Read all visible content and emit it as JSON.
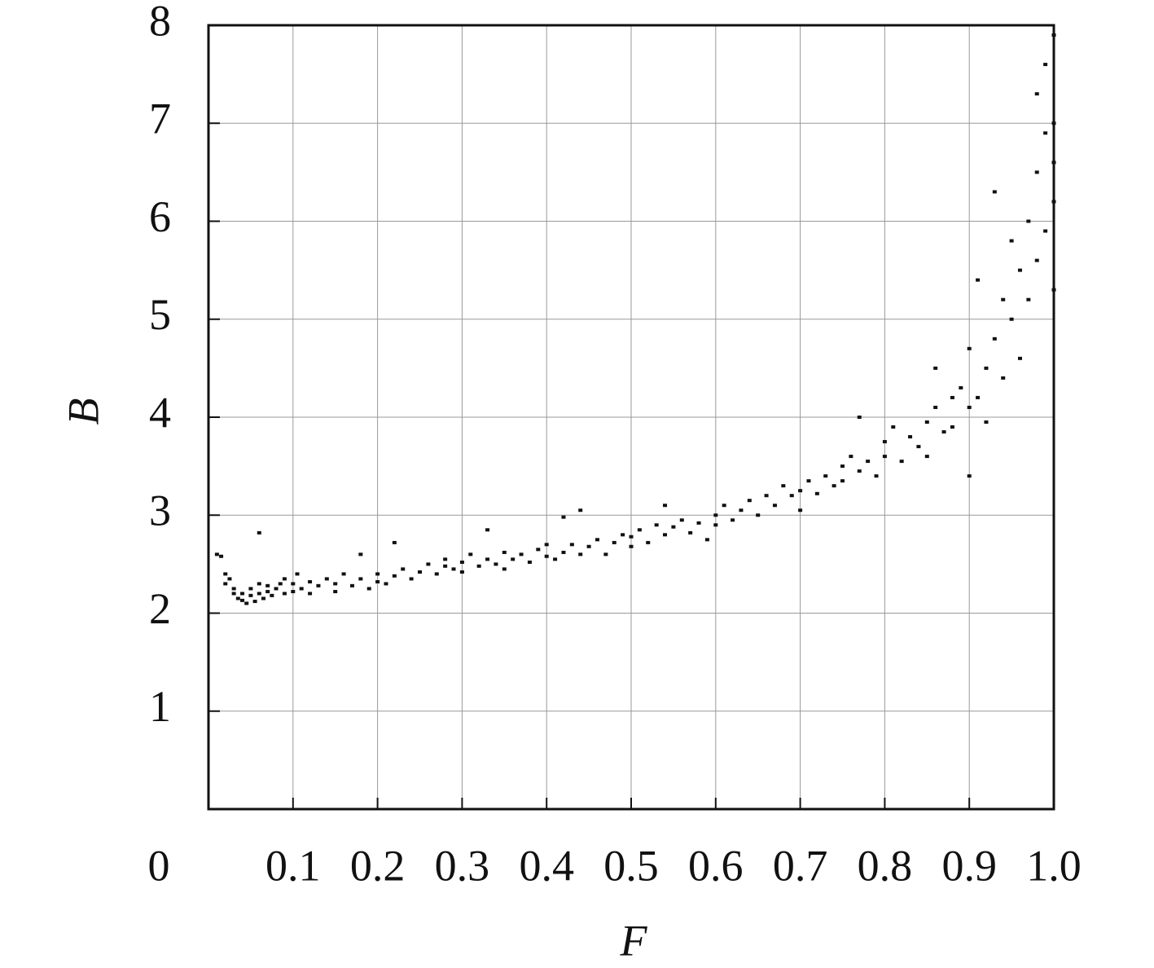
{
  "chart_data": {
    "type": "scatter",
    "xlabel": "F",
    "ylabel": "B",
    "color": "#111111",
    "grid": true,
    "xlim": [
      0,
      1
    ],
    "ylim": [
      0,
      8
    ],
    "xticks": [
      0,
      0.1,
      0.2,
      0.3,
      0.4,
      0.5,
      0.6,
      0.7,
      0.8,
      0.9,
      {
        "value": 1,
        "label": "1.0"
      }
    ],
    "yticks": [
      1,
      2,
      3,
      4,
      5,
      6,
      7,
      8
    ],
    "x": [
      0.01,
      0.015,
      0.02,
      0.02,
      0.025,
      0.03,
      0.03,
      0.035,
      0.04,
      0.04,
      0.045,
      0.05,
      0.05,
      0.055,
      0.06,
      0.06,
      0.06,
      0.065,
      0.07,
      0.07,
      0.075,
      0.08,
      0.085,
      0.09,
      0.09,
      0.1,
      0.1,
      0.105,
      0.11,
      0.12,
      0.12,
      0.13,
      0.14,
      0.15,
      0.15,
      0.16,
      0.17,
      0.18,
      0.18,
      0.19,
      0.2,
      0.2,
      0.21,
      0.22,
      0.22,
      0.23,
      0.24,
      0.25,
      0.26,
      0.27,
      0.28,
      0.28,
      0.29,
      0.3,
      0.3,
      0.31,
      0.32,
      0.33,
      0.33,
      0.34,
      0.35,
      0.35,
      0.36,
      0.37,
      0.38,
      0.39,
      0.4,
      0.4,
      0.41,
      0.42,
      0.42,
      0.43,
      0.44,
      0.44,
      0.45,
      0.46,
      0.47,
      0.48,
      0.49,
      0.5,
      0.5,
      0.51,
      0.52,
      0.53,
      0.54,
      0.54,
      0.55,
      0.56,
      0.57,
      0.58,
      0.59,
      0.6,
      0.6,
      0.61,
      0.62,
      0.63,
      0.64,
      0.65,
      0.66,
      0.67,
      0.68,
      0.69,
      0.7,
      0.7,
      0.71,
      0.72,
      0.73,
      0.74,
      0.75,
      0.75,
      0.76,
      0.77,
      0.77,
      0.78,
      0.79,
      0.8,
      0.8,
      0.81,
      0.82,
      0.83,
      0.84,
      0.85,
      0.85,
      0.86,
      0.86,
      0.87,
      0.88,
      0.88,
      0.89,
      0.9,
      0.9,
      0.9,
      0.91,
      0.91,
      0.92,
      0.92,
      0.93,
      0.93,
      0.94,
      0.94,
      0.95,
      0.95,
      0.96,
      0.96,
      0.97,
      0.97,
      0.98,
      0.98,
      0.98,
      0.99,
      0.99,
      0.99,
      1.0,
      1.0,
      1.0,
      1.0,
      1.0
    ],
    "values": [
      2.6,
      2.58,
      2.4,
      2.3,
      2.35,
      2.25,
      2.2,
      2.15,
      2.13,
      2.2,
      2.1,
      2.18,
      2.25,
      2.12,
      2.2,
      2.3,
      2.82,
      2.15,
      2.22,
      2.28,
      2.18,
      2.25,
      2.3,
      2.2,
      2.35,
      2.22,
      2.3,
      2.4,
      2.25,
      2.2,
      2.32,
      2.28,
      2.35,
      2.22,
      2.3,
      2.4,
      2.28,
      2.35,
      2.6,
      2.25,
      2.32,
      2.4,
      2.3,
      2.38,
      2.72,
      2.45,
      2.35,
      2.42,
      2.5,
      2.4,
      2.48,
      2.55,
      2.45,
      2.52,
      2.42,
      2.6,
      2.48,
      2.55,
      2.85,
      2.5,
      2.62,
      2.45,
      2.55,
      2.6,
      2.52,
      2.65,
      2.58,
      2.7,
      2.55,
      2.62,
      2.98,
      2.7,
      2.6,
      3.05,
      2.68,
      2.75,
      2.6,
      2.72,
      2.8,
      2.68,
      2.78,
      2.85,
      2.72,
      2.9,
      2.8,
      3.1,
      2.88,
      2.95,
      2.82,
      2.92,
      2.75,
      3.0,
      2.9,
      3.1,
      2.95,
      3.05,
      3.15,
      3.0,
      3.2,
      3.1,
      3.3,
      3.2,
      3.25,
      3.05,
      3.35,
      3.22,
      3.4,
      3.3,
      3.5,
      3.35,
      3.6,
      3.45,
      4.0,
      3.55,
      3.4,
      3.6,
      3.75,
      3.9,
      3.55,
      3.8,
      3.7,
      3.95,
      3.6,
      4.1,
      4.5,
      3.85,
      4.2,
      3.9,
      4.3,
      4.1,
      3.4,
      4.7,
      4.2,
      5.4,
      4.5,
      3.95,
      4.8,
      6.3,
      4.4,
      5.2,
      5.0,
      5.8,
      4.6,
      5.5,
      6.0,
      5.2,
      6.5,
      5.6,
      7.3,
      6.9,
      5.9,
      7.6,
      7.9,
      6.2,
      5.3,
      7.0,
      6.6
    ]
  }
}
